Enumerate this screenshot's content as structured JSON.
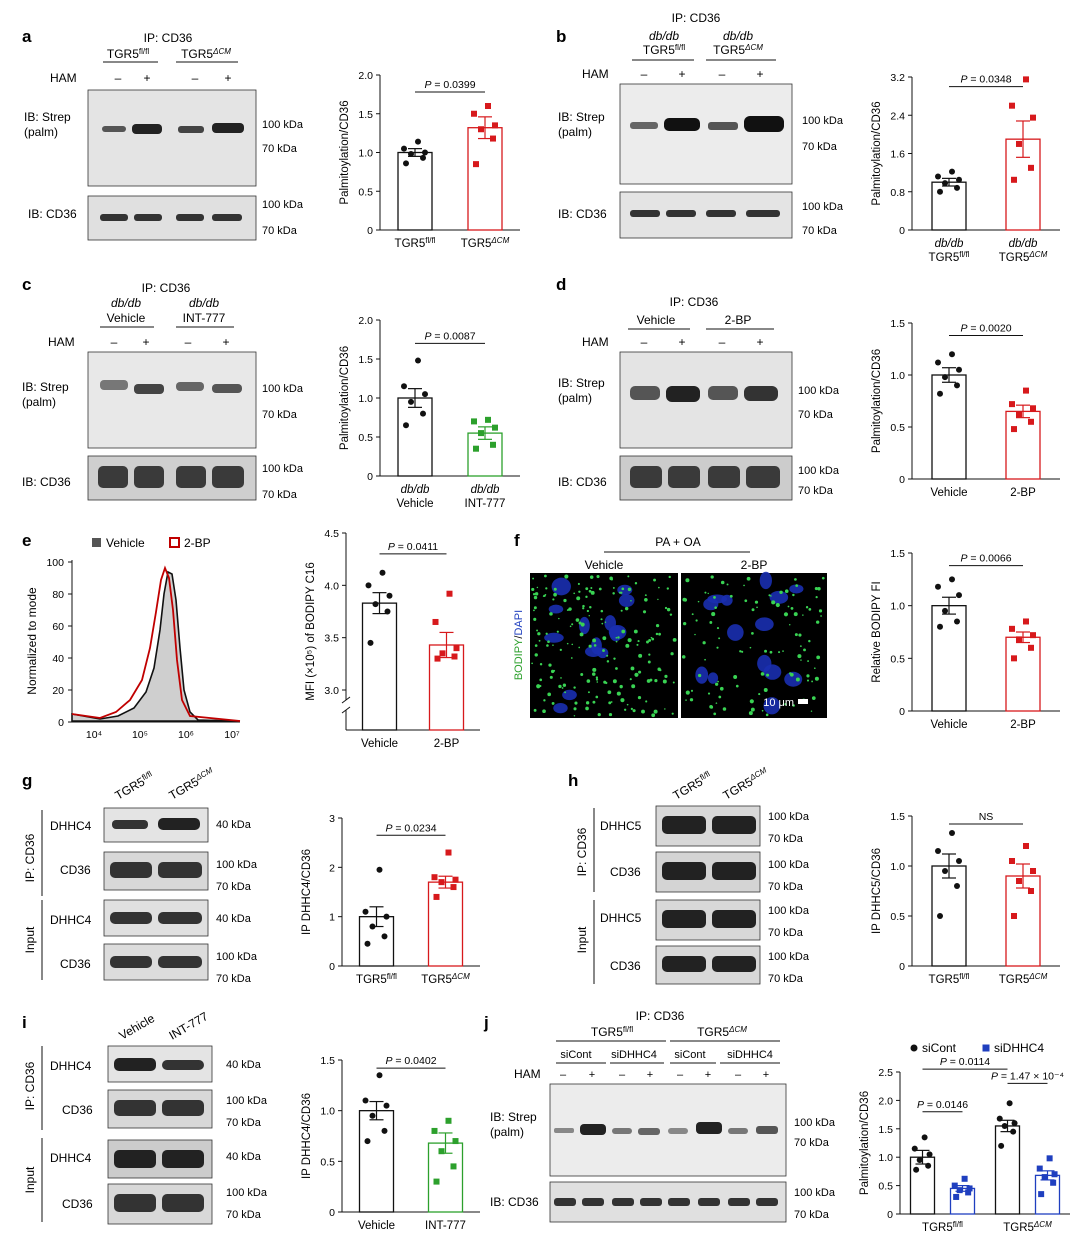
{
  "panels": {
    "a": {
      "letter": "a",
      "ip": "IP: CD36",
      "groups": [
        "TGR5fl/fl",
        "TGR5ΔCM"
      ],
      "ham": {
        "label": "HAM",
        "signs": [
          "–",
          "+",
          "–",
          "+"
        ]
      },
      "blots": [
        {
          "label": "IB: Strep\n(palm)",
          "mw": [
            "100 kDa",
            "70 kDa"
          ]
        },
        {
          "label": "IB: CD36",
          "mw": [
            "100 kDa",
            "70 kDa"
          ]
        }
      ]
    },
    "b": {
      "letter": "b",
      "ip": "IP: CD36",
      "line": "db/db",
      "groups": [
        "TGR5fl/fl",
        "TGR5ΔCM"
      ],
      "ham": {
        "label": "HAM",
        "signs": [
          "–",
          "+",
          "–",
          "+"
        ]
      },
      "blots": [
        {
          "label": "IB: Strep\n(palm)",
          "mw": [
            "100 kDa",
            "70 kDa"
          ]
        },
        {
          "label": "IB: CD36",
          "mw": [
            "100 kDa",
            "70 kDa"
          ]
        }
      ]
    },
    "c": {
      "letter": "c",
      "ip": "IP: CD36",
      "line": "db/db",
      "groups": [
        "Vehicle",
        "INT-777"
      ],
      "ham": {
        "label": "HAM",
        "signs": [
          "–",
          "+",
          "–",
          "+"
        ]
      },
      "blots": [
        {
          "label": "IB: Strep\n(palm)",
          "mw": [
            "100 kDa",
            "70 kDa"
          ]
        },
        {
          "label": "IB: CD36",
          "mw": [
            "100 kDa",
            "70 kDa"
          ]
        }
      ]
    },
    "d": {
      "letter": "d",
      "ip": "IP: CD36",
      "groups": [
        "Vehicle",
        "2-BP"
      ],
      "ham": {
        "label": "HAM",
        "signs": [
          "–",
          "+",
          "–",
          "+"
        ]
      },
      "blots": [
        {
          "label": "IB: Strep\n(palm)",
          "mw": [
            "100 kDa",
            "70 kDa"
          ]
        },
        {
          "label": "IB: CD36",
          "mw": [
            "100 kDa",
            "70 kDa"
          ]
        }
      ]
    },
    "e": {
      "letter": "e",
      "legend": [
        "Vehicle",
        "2-BP"
      ],
      "ylabel": "Normalized to mode",
      "yticks": [
        "0",
        "20",
        "40",
        "60",
        "80",
        "100"
      ],
      "xticks": [
        "10⁴",
        "10⁵",
        "10⁶",
        "10⁷"
      ]
    },
    "f": {
      "letter": "f",
      "condition": "PA + OA",
      "groups": [
        "Vehicle",
        "2-BP"
      ],
      "stain_a": "BODIPY",
      "stain_sep": "/",
      "stain_b": "DAPI",
      "scale": "10 μm"
    },
    "g": {
      "letter": "g",
      "lanes": [
        "TGR5fl/fl",
        "TGR5ΔCM"
      ],
      "sections": [
        "IP: CD36",
        "Input"
      ],
      "rows": [
        {
          "label": "DHHC4",
          "mw": [
            "40 kDa"
          ]
        },
        {
          "label": "CD36",
          "mw": [
            "100 kDa",
            "70 kDa"
          ]
        },
        {
          "label": "DHHC4",
          "mw": [
            "40 kDa"
          ]
        },
        {
          "label": "CD36",
          "mw": [
            "100 kDa",
            "70 kDa"
          ]
        }
      ]
    },
    "h": {
      "letter": "h",
      "lanes": [
        "TGR5fl/fl",
        "TGR5ΔCM"
      ],
      "sections": [
        "IP: CD36",
        "Input"
      ],
      "rows": [
        {
          "label": "DHHC5",
          "mw": [
            "100 kDa",
            "70 kDa"
          ]
        },
        {
          "label": "CD36",
          "mw": [
            "100 kDa",
            "70 kDa"
          ]
        },
        {
          "label": "DHHC5",
          "mw": [
            "100 kDa",
            "70 kDa"
          ]
        },
        {
          "label": "CD36",
          "mw": [
            "100 kDa",
            "70 kDa"
          ]
        }
      ]
    },
    "i": {
      "letter": "i",
      "lanes": [
        "Vehicle",
        "INT-777"
      ],
      "sections": [
        "IP: CD36",
        "Input"
      ],
      "rows": [
        {
          "label": "DHHC4",
          "mw": [
            "40 kDa"
          ]
        },
        {
          "label": "CD36",
          "mw": [
            "100 kDa",
            "70 kDa"
          ]
        },
        {
          "label": "DHHC4",
          "mw": [
            "40 kDa"
          ]
        },
        {
          "label": "CD36",
          "mw": [
            "100 kDa",
            "70 kDa"
          ]
        }
      ]
    },
    "j": {
      "letter": "j",
      "ip": "IP: CD36",
      "groups": [
        "TGR5fl/fl",
        "TGR5ΔCM"
      ],
      "subgroups": [
        "siCont",
        "siDHHC4",
        "siCont",
        "siDHHC4"
      ],
      "ham": {
        "label": "HAM",
        "signs": [
          "–",
          "+",
          "–",
          "+",
          "–",
          "+",
          "–",
          "+"
        ]
      },
      "blots": [
        {
          "label": "IB: Strep\n(palm)",
          "mw": [
            "100 kDa",
            "70 kDa"
          ]
        },
        {
          "label": "IB: CD36",
          "mw": [
            "100 kDa",
            "70 kDa"
          ]
        }
      ]
    }
  },
  "chart_data": [
    {
      "id": "a",
      "type": "bar",
      "categories": [
        "TGR5fl/fl",
        "TGR5ΔCM"
      ],
      "values": [
        1.0,
        1.32
      ],
      "sem": [
        0.05,
        0.14
      ],
      "points": [
        [
          0.86,
          0.93,
          0.98,
          1.0,
          1.05,
          1.14
        ],
        [
          0.85,
          1.18,
          1.3,
          1.35,
          1.5,
          1.6
        ]
      ],
      "colors": [
        "#111111",
        "#d7191c"
      ],
      "ylabel": "Palmitoylation/CD36",
      "ylim": [
        0,
        2.0
      ],
      "yticks": [
        "0",
        "0.5",
        "1.0",
        "1.5",
        "2.0"
      ],
      "brackets": [
        {
          "label": "P = 0.0399",
          "from": 0,
          "to": 1,
          "y": 1.78
        }
      ]
    },
    {
      "id": "b",
      "type": "bar",
      "categories": [
        "TGR5fl/fl",
        "TGR5ΔCM"
      ],
      "category_prefix": "db/db",
      "values": [
        1.0,
        1.9
      ],
      "sem": [
        0.08,
        0.38
      ],
      "points": [
        [
          0.8,
          0.88,
          0.98,
          1.05,
          1.12,
          1.22
        ],
        [
          1.05,
          1.3,
          1.8,
          2.35,
          2.6,
          3.15
        ]
      ],
      "colors": [
        "#111111",
        "#d7191c"
      ],
      "ylabel": "Palmitoylation/CD36",
      "ylim": [
        0,
        3.2
      ],
      "yticks": [
        "0",
        "0.8",
        "1.6",
        "2.4",
        "3.2"
      ],
      "brackets": [
        {
          "label": "P = 0.0348",
          "from": 0,
          "to": 1,
          "y": 3.0
        }
      ]
    },
    {
      "id": "c",
      "type": "bar",
      "categories": [
        "Vehicle",
        "INT-777"
      ],
      "category_prefix": "db/db",
      "values": [
        1.0,
        0.55
      ],
      "sem": [
        0.12,
        0.08
      ],
      "points": [
        [
          0.65,
          0.8,
          0.95,
          1.05,
          1.15,
          1.48
        ],
        [
          0.35,
          0.4,
          0.55,
          0.62,
          0.7,
          0.72
        ]
      ],
      "colors": [
        "#111111",
        "#2ca02c"
      ],
      "ylabel": "Palmitoylation/CD36",
      "ylim": [
        0,
        2.0
      ],
      "yticks": [
        "0",
        "0.5",
        "1.0",
        "1.5",
        "2.0"
      ],
      "brackets": [
        {
          "label": "P = 0.0087",
          "from": 0,
          "to": 1,
          "y": 1.7
        }
      ]
    },
    {
      "id": "d",
      "type": "bar",
      "categories": [
        "Vehicle",
        "2-BP"
      ],
      "values": [
        1.0,
        0.65
      ],
      "sem": [
        0.07,
        0.06
      ],
      "points": [
        [
          0.82,
          0.9,
          0.98,
          1.05,
          1.12,
          1.2
        ],
        [
          0.48,
          0.55,
          0.62,
          0.68,
          0.72,
          0.85
        ]
      ],
      "colors": [
        "#111111",
        "#d7191c"
      ],
      "ylabel": "Palmitoylation/CD36",
      "ylim": [
        0,
        1.5
      ],
      "yticks": [
        "0",
        "0.5",
        "1.0",
        "1.5"
      ],
      "brackets": [
        {
          "label": "P = 0.0020",
          "from": 0,
          "to": 1,
          "y": 1.38
        }
      ]
    },
    {
      "id": "e",
      "type": "bar",
      "categories": [
        "Vehicle",
        "2-BP"
      ],
      "values": [
        3.83,
        3.43
      ],
      "sem": [
        0.1,
        0.12
      ],
      "points": [
        [
          3.45,
          3.75,
          3.82,
          3.9,
          4.0,
          4.12
        ],
        [
          3.3,
          3.32,
          3.35,
          3.4,
          3.65,
          3.92
        ]
      ],
      "colors": [
        "#111111",
        "#d7191c"
      ],
      "ylabel": "MFI (×10⁵) of BODIPY C16",
      "ylim": [
        3.0,
        4.5
      ],
      "axis_break": true,
      "yticks": [
        "3.0",
        "3.5",
        "4.0",
        "4.5"
      ],
      "brackets": [
        {
          "label": "P = 0.0411",
          "from": 0,
          "to": 1,
          "y": 4.3
        }
      ]
    },
    {
      "id": "f",
      "type": "bar",
      "categories": [
        "Vehicle",
        "2-BP"
      ],
      "values": [
        1.0,
        0.7
      ],
      "sem": [
        0.08,
        0.05
      ],
      "points": [
        [
          0.8,
          0.85,
          0.95,
          1.1,
          1.18,
          1.25
        ],
        [
          0.5,
          0.6,
          0.68,
          0.72,
          0.78,
          0.85
        ]
      ],
      "colors": [
        "#111111",
        "#d7191c"
      ],
      "ylabel": "Relative BODIPY FI",
      "ylim": [
        0,
        1.5
      ],
      "yticks": [
        "0",
        "0.5",
        "1.0",
        "1.5"
      ],
      "brackets": [
        {
          "label": "P = 0.0066",
          "from": 0,
          "to": 1,
          "y": 1.38
        }
      ]
    },
    {
      "id": "g",
      "type": "bar",
      "categories": [
        "TGR5fl/fl",
        "TGR5ΔCM"
      ],
      "values": [
        1.0,
        1.7
      ],
      "sem": [
        0.2,
        0.12
      ],
      "points": [
        [
          0.45,
          0.6,
          0.8,
          1.0,
          1.1,
          1.95
        ],
        [
          1.4,
          1.6,
          1.7,
          1.75,
          1.8,
          2.3
        ]
      ],
      "colors": [
        "#111111",
        "#d7191c"
      ],
      "ylabel": "IP DHHC4/CD36",
      "ylim": [
        0,
        3
      ],
      "yticks": [
        "0",
        "1",
        "2",
        "3"
      ],
      "brackets": [
        {
          "label": "P = 0.0234",
          "from": 0,
          "to": 1,
          "y": 2.65
        }
      ]
    },
    {
      "id": "h",
      "type": "bar",
      "categories": [
        "TGR5fl/fl",
        "TGR5ΔCM"
      ],
      "values": [
        1.0,
        0.9
      ],
      "sem": [
        0.12,
        0.12
      ],
      "points": [
        [
          0.5,
          0.8,
          0.95,
          1.05,
          1.15,
          1.33
        ],
        [
          0.5,
          0.75,
          0.85,
          0.95,
          1.05,
          1.2
        ]
      ],
      "colors": [
        "#111111",
        "#d7191c"
      ],
      "ylabel": "IP DHHC5/CD36",
      "ylim": [
        0,
        1.5
      ],
      "yticks": [
        "0",
        "0.5",
        "1.0",
        "1.5"
      ],
      "brackets": [
        {
          "label": "NS",
          "from": 0,
          "to": 1,
          "y": 1.42
        }
      ]
    },
    {
      "id": "i",
      "type": "bar",
      "categories": [
        "Vehicle",
        "INT-777"
      ],
      "values": [
        1.0,
        0.68
      ],
      "sem": [
        0.09,
        0.1
      ],
      "points": [
        [
          0.7,
          0.8,
          0.95,
          1.05,
          1.1,
          1.35
        ],
        [
          0.3,
          0.45,
          0.6,
          0.7,
          0.8,
          0.9
        ]
      ],
      "colors": [
        "#111111",
        "#2ca02c"
      ],
      "ylabel": "IP DHHC4/CD36",
      "ylim": [
        0,
        1.5
      ],
      "yticks": [
        "0",
        "0.5",
        "1.0",
        "1.5"
      ],
      "brackets": [
        {
          "label": "P = 0.0402",
          "from": 0,
          "to": 1,
          "y": 1.42
        }
      ]
    },
    {
      "id": "j",
      "type": "bar",
      "categories": [
        "TGR5fl/fl",
        "TGR5ΔCM"
      ],
      "series": [
        {
          "name": "siCont",
          "values": [
            1.0,
            1.55
          ],
          "sem": [
            0.12,
            0.1
          ],
          "points": [
            [
              0.78,
              0.85,
              0.95,
              1.05,
              1.15,
              1.35
            ],
            [
              1.2,
              1.45,
              1.55,
              1.6,
              1.68,
              1.95
            ]
          ],
          "color": "#111111"
        },
        {
          "name": "siDHHC4",
          "values": [
            0.45,
            0.68
          ],
          "sem": [
            0.05,
            0.08
          ],
          "points": [
            [
              0.3,
              0.38,
              0.42,
              0.45,
              0.5,
              0.62
            ],
            [
              0.35,
              0.55,
              0.65,
              0.7,
              0.8,
              0.98
            ]
          ],
          "color": "#1f3fbf"
        }
      ],
      "ylabel": "Palmitoylation/CD36",
      "ylim": [
        0,
        2.5
      ],
      "yticks": [
        "0",
        "0.5",
        "1.0",
        "1.5",
        "2.0",
        "2.5"
      ],
      "legend": "top",
      "brackets": [
        {
          "label": "P = 0.0146",
          "from": [
            0,
            0
          ],
          "to": [
            0,
            1
          ],
          "y": 1.8
        },
        {
          "label": "P = 1.47 × 10⁻⁴",
          "from": [
            1,
            0
          ],
          "to": [
            1,
            1
          ],
          "y": 2.3
        },
        {
          "label": "P = 0.0114",
          "from": [
            0,
            0
          ],
          "to": [
            1,
            0
          ],
          "y": 2.55
        }
      ]
    }
  ]
}
